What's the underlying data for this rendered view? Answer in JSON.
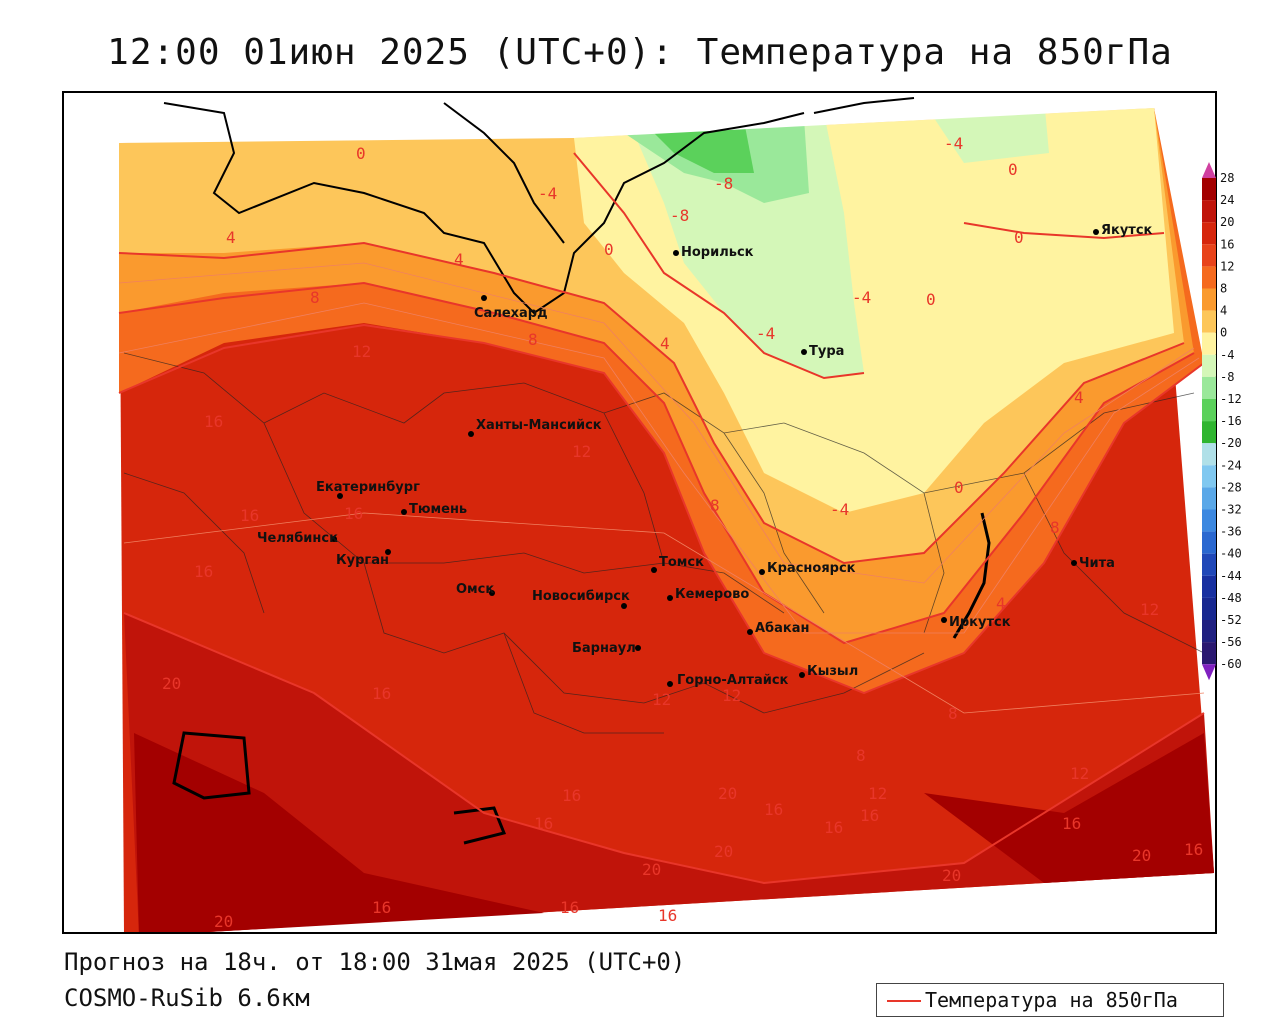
{
  "title": "12:00 01июн 2025 (UTC+0): Температура на 850гПа",
  "footer": {
    "forecast": "Прогноз на 18ч. от 18:00 31мая 2025 (UTC+0)",
    "model": "COSMO-RuSib 6.6км"
  },
  "legend": {
    "label": "Температура на 850гПа",
    "line_color": "#e8362a"
  },
  "colorbar": {
    "ticks": [
      "28",
      "24",
      "20",
      "16",
      "12",
      "8",
      "4",
      "0",
      "-4",
      "-8",
      "-12",
      "-16",
      "-20",
      "-24",
      "-28",
      "-32",
      "-36",
      "-40",
      "-44",
      "-48",
      "-52",
      "-56",
      "-60"
    ],
    "colors": [
      "#a30000",
      "#c0140a",
      "#d6260c",
      "#e8431a",
      "#f56a1e",
      "#fa9a2e",
      "#fdc65a",
      "#fff3a0",
      "#d4f7b8",
      "#9ae89a",
      "#5bd15b",
      "#2fb52f",
      "#b0e0e8",
      "#80c8f0",
      "#5aa8e8",
      "#3c88e0",
      "#2a68d0",
      "#2048b8",
      "#1830a0",
      "#182890",
      "#202080",
      "#2a1870"
    ],
    "top_cap_color": "#d040a0",
    "bottom_cap_color": "#8020c0"
  },
  "cities": [
    {
      "name": "Норильск"
    },
    {
      "name": "Якутск"
    },
    {
      "name": "Салехард"
    },
    {
      "name": "Тура"
    },
    {
      "name": "Ханты-Мансийск"
    },
    {
      "name": "Екатеринбург"
    },
    {
      "name": "Тюмень"
    },
    {
      "name": "Челябинск"
    },
    {
      "name": "Курган"
    },
    {
      "name": "Омск"
    },
    {
      "name": "Новосибирск"
    },
    {
      "name": "Томск"
    },
    {
      "name": "Кемерово"
    },
    {
      "name": "Красноярск"
    },
    {
      "name": "Абакан"
    },
    {
      "name": "Барнаул"
    },
    {
      "name": "Горно-Алтайск"
    },
    {
      "name": "Кызыл"
    },
    {
      "name": "Иркутск"
    },
    {
      "name": "Чита"
    }
  ],
  "isotherm_labels": [
    "0",
    "-4",
    "-8",
    "-4",
    "-8",
    "0",
    "4",
    "4",
    "8",
    "0",
    "-4",
    "0",
    "-4",
    "0",
    "12",
    "8",
    "4",
    "12",
    "16",
    "16",
    "16",
    "8",
    "0",
    "-4",
    "8",
    "4",
    "4",
    "12",
    "20",
    "16",
    "12",
    "12",
    "8",
    "8",
    "16",
    "20",
    "16",
    "16",
    "16",
    "12",
    "12",
    "20",
    "16",
    "16",
    "20",
    "20",
    "20",
    "16",
    "16",
    "16",
    "16",
    "16",
    "20"
  ]
}
